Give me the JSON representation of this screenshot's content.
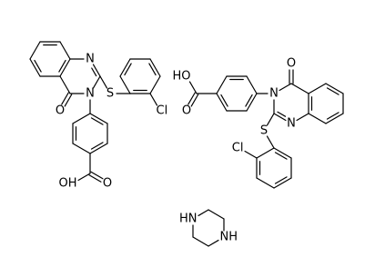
{
  "molecules": [
    {
      "labels": [
        "N",
        "N",
        "O",
        "S",
        "Cl",
        "OH",
        "O"
      ]
    },
    {
      "labels": [
        "O",
        "N",
        "N",
        "HO",
        "O",
        "S",
        "Cl"
      ]
    },
    {
      "labels": [
        "HN",
        "NH"
      ]
    }
  ]
}
